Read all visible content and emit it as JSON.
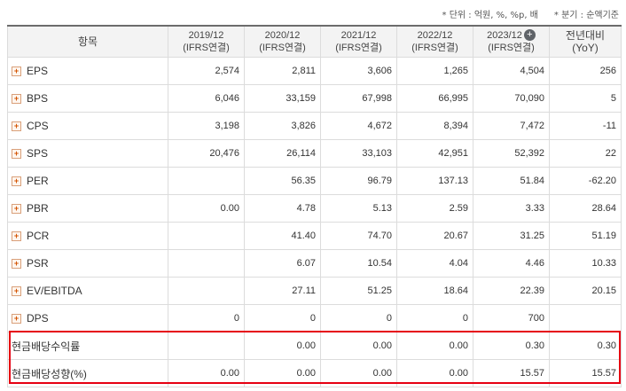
{
  "units": {
    "unit_note": "* 단위 : 억원, %, %p, 배",
    "type_note": "* 분기 : 순액기준"
  },
  "header": {
    "item": "항목",
    "periods": [
      {
        "year": "2019/12",
        "basis": "(IFRS연결)"
      },
      {
        "year": "2020/12",
        "basis": "(IFRS연결)"
      },
      {
        "year": "2021/12",
        "basis": "(IFRS연결)"
      },
      {
        "year": "2022/12",
        "basis": "(IFRS연결)"
      },
      {
        "year": "2023/12",
        "basis": "(IFRS연결)"
      }
    ],
    "yoy_line1": "전년대비",
    "yoy_line2": "(YoY)",
    "add_icon": "plus-circle-icon"
  },
  "rows": [
    {
      "label": "EPS",
      "expandable": true,
      "values": [
        "2,574",
        "2,811",
        "3,606",
        "1,265",
        "4,504"
      ],
      "yoy": "256",
      "yoy_negative": false
    },
    {
      "label": "BPS",
      "expandable": true,
      "values": [
        "6,046",
        "33,159",
        "67,998",
        "66,995",
        "70,090"
      ],
      "yoy": "5",
      "yoy_negative": false
    },
    {
      "label": "CPS",
      "expandable": true,
      "values": [
        "3,198",
        "3,826",
        "4,672",
        "8,394",
        "7,472"
      ],
      "yoy": "-11",
      "yoy_negative": true
    },
    {
      "label": "SPS",
      "expandable": true,
      "values": [
        "20,476",
        "26,114",
        "33,103",
        "42,951",
        "52,392"
      ],
      "yoy": "22",
      "yoy_negative": false
    },
    {
      "label": "PER",
      "expandable": true,
      "values": [
        "",
        "56.35",
        "96.79",
        "137.13",
        "51.84"
      ],
      "yoy": "-62.20",
      "yoy_negative": true
    },
    {
      "label": "PBR",
      "expandable": true,
      "values": [
        "0.00",
        "4.78",
        "5.13",
        "2.59",
        "3.33"
      ],
      "yoy": "28.64",
      "yoy_negative": false
    },
    {
      "label": "PCR",
      "expandable": true,
      "values": [
        "",
        "41.40",
        "74.70",
        "20.67",
        "31.25"
      ],
      "yoy": "51.19",
      "yoy_negative": false
    },
    {
      "label": "PSR",
      "expandable": true,
      "values": [
        "",
        "6.07",
        "10.54",
        "4.04",
        "4.46"
      ],
      "yoy": "10.33",
      "yoy_negative": false
    },
    {
      "label": "EV/EBITDA",
      "expandable": true,
      "values": [
        "",
        "27.11",
        "51.25",
        "18.64",
        "22.39"
      ],
      "yoy": "20.15",
      "yoy_negative": false
    },
    {
      "label": "DPS",
      "expandable": true,
      "values": [
        "0",
        "0",
        "0",
        "0",
        "700"
      ],
      "yoy": "",
      "yoy_negative": false
    },
    {
      "label": "현금배당수익률",
      "expandable": false,
      "values": [
        "",
        "0.00",
        "0.00",
        "0.00",
        "0.30"
      ],
      "yoy": "0.30",
      "yoy_negative": false
    },
    {
      "label": "현금배당성향(%)",
      "expandable": false,
      "values": [
        "0.00",
        "0.00",
        "0.00",
        "0.00",
        "15.57"
      ],
      "yoy": "15.57",
      "yoy_negative": false
    }
  ],
  "colors": {
    "highlight_border": "#e60012",
    "negative_value": "#e02020",
    "header_bg": "#f3f3f3"
  }
}
